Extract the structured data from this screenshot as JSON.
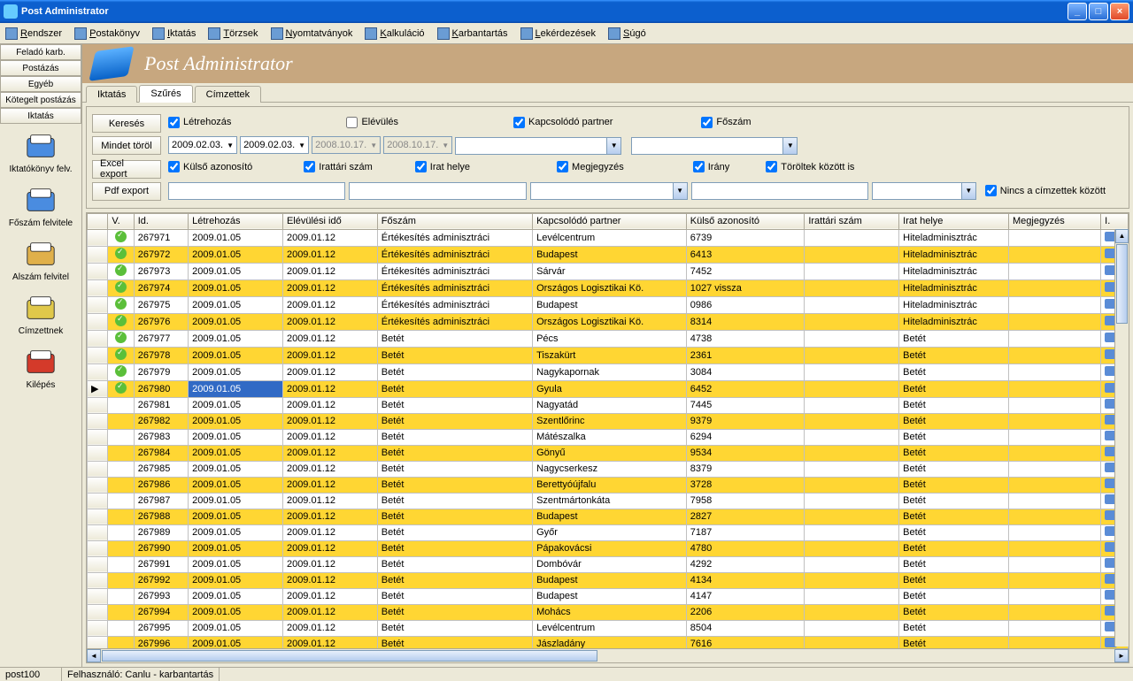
{
  "window": {
    "title": "Post Administrator"
  },
  "menu": [
    "Rendszer",
    "Postakönyv",
    "Iktatás",
    "Törzsek",
    "Nyomtatványok",
    "Kalkuláció",
    "Karbantartás",
    "Lekérdezések",
    "Súgó"
  ],
  "left_buttons": [
    "Feladó karb.",
    "Postázás",
    "Egyéb",
    "Kötegelt postázás",
    "Iktatás"
  ],
  "left_big": [
    {
      "label": "Iktatókönyv felv.",
      "color": "#4a8ce0"
    },
    {
      "label": "Főszám felvitele",
      "color": "#4a8ce0"
    },
    {
      "label": "Alszám felvitel",
      "color": "#e0b04a"
    },
    {
      "label": "Címzettnek",
      "color": "#e0c84a"
    },
    {
      "label": "Kilépés",
      "color": "#d43a2a"
    }
  ],
  "banner": "Post Administrator",
  "tabs": [
    "Iktatás",
    "Szűrés",
    "Címzettek"
  ],
  "active_tab": 1,
  "filter_buttons": [
    "Keresés",
    "Mindet töröl",
    "Excel export",
    "Pdf export"
  ],
  "filter_checks_r1": [
    "Létrehozás",
    "Elévülés",
    "Kapcsolódó partner",
    "Főszám"
  ],
  "filter_checks_r3": [
    "Külső azonosító",
    "Irattári szám",
    "Irat helye",
    "Megjegyzés",
    "Irány"
  ],
  "filter_checks_side": [
    "Töröltek között is",
    "Nincs a címzettek között"
  ],
  "date1": "2009.02.03.",
  "date2": "2009.02.03.",
  "date3": "2008.10.17.",
  "date4": "2008.10.17.",
  "grid_cols": [
    "",
    "V.",
    "Id.",
    "Létrehozás",
    "Elévülési idő",
    "Főszám",
    "Kapcsolódó partner",
    "Külső azonosító",
    "Irattári szám",
    "Irat helye",
    "Megjegyzés",
    "I."
  ],
  "grid_widths": [
    14,
    18,
    46,
    80,
    80,
    124,
    118,
    100,
    80,
    82,
    78,
    20
  ],
  "rows": [
    {
      "v": 1,
      "id": "267971",
      "c": "2009.01.05",
      "e": "2009.01.12",
      "f": "Értékesítés adminisztráci",
      "p": "Levélcentrum",
      "k": "6739",
      "it": "",
      "ih": "Hiteladminisztrác",
      "m": "",
      "hl": 0
    },
    {
      "v": 1,
      "id": "267972",
      "c": "2009.01.05",
      "e": "2009.01.12",
      "f": "Értékesítés adminisztráci",
      "p": "Budapest",
      "k": "6413",
      "it": "",
      "ih": "Hiteladminisztrác",
      "m": "",
      "hl": 1
    },
    {
      "v": 1,
      "id": "267973",
      "c": "2009.01.05",
      "e": "2009.01.12",
      "f": "Értékesítés adminisztráci",
      "p": "Sárvár",
      "k": "7452",
      "it": "",
      "ih": "Hiteladminisztrác",
      "m": "",
      "hl": 0
    },
    {
      "v": 1,
      "id": "267974",
      "c": "2009.01.05",
      "e": "2009.01.12",
      "f": "Értékesítés adminisztráci",
      "p": "Országos Logisztikai Kö.",
      "k": "1027 vissza",
      "it": "",
      "ih": "Hiteladminisztrác",
      "m": "",
      "hl": 1
    },
    {
      "v": 1,
      "id": "267975",
      "c": "2009.01.05",
      "e": "2009.01.12",
      "f": "Értékesítés adminisztráci",
      "p": "Budapest",
      "k": "0986",
      "it": "",
      "ih": "Hiteladminisztrác",
      "m": "",
      "hl": 0
    },
    {
      "v": 1,
      "id": "267976",
      "c": "2009.01.05",
      "e": "2009.01.12",
      "f": "Értékesítés adminisztráci",
      "p": "Országos Logisztikai Kö.",
      "k": "8314",
      "it": "",
      "ih": "Hiteladminisztrác",
      "m": "",
      "hl": 1
    },
    {
      "v": 1,
      "id": "267977",
      "c": "2009.01.05",
      "e": "2009.01.12",
      "f": "Betét",
      "p": "Pécs",
      "k": "4738",
      "it": "",
      "ih": "Betét",
      "m": "",
      "hl": 0
    },
    {
      "v": 1,
      "id": "267978",
      "c": "2009.01.05",
      "e": "2009.01.12",
      "f": "Betét",
      "p": "Tiszakürt",
      "k": "2361",
      "it": "",
      "ih": "Betét",
      "m": "",
      "hl": 1
    },
    {
      "v": 1,
      "id": "267979",
      "c": "2009.01.05",
      "e": "2009.01.12",
      "f": "Betét",
      "p": "Nagykapornak",
      "k": "3084",
      "it": "",
      "ih": "Betét",
      "m": "",
      "hl": 0
    },
    {
      "v": 1,
      "id": "267980",
      "c": "2009.01.05",
      "e": "2009.01.12",
      "f": "Betét",
      "p": "Gyula",
      "k": "6452",
      "it": "",
      "ih": "Betét",
      "m": "",
      "hl": 1,
      "sel": 1
    },
    {
      "v": 0,
      "id": "267981",
      "c": "2009.01.05",
      "e": "2009.01.12",
      "f": "Betét",
      "p": "Nagyatád",
      "k": "7445",
      "it": "",
      "ih": "Betét",
      "m": "",
      "hl": 0
    },
    {
      "v": 0,
      "id": "267982",
      "c": "2009.01.05",
      "e": "2009.01.12",
      "f": "Betét",
      "p": "Szentlőrinc",
      "k": "9379",
      "it": "",
      "ih": "Betét",
      "m": "",
      "hl": 1
    },
    {
      "v": 0,
      "id": "267983",
      "c": "2009.01.05",
      "e": "2009.01.12",
      "f": "Betét",
      "p": "Mátészalka",
      "k": "6294",
      "it": "",
      "ih": "Betét",
      "m": "",
      "hl": 0
    },
    {
      "v": 0,
      "id": "267984",
      "c": "2009.01.05",
      "e": "2009.01.12",
      "f": "Betét",
      "p": "Gönyű",
      "k": "9534",
      "it": "",
      "ih": "Betét",
      "m": "",
      "hl": 1
    },
    {
      "v": 0,
      "id": "267985",
      "c": "2009.01.05",
      "e": "2009.01.12",
      "f": "Betét",
      "p": "Nagycserkesz",
      "k": "8379",
      "it": "",
      "ih": "Betét",
      "m": "",
      "hl": 0
    },
    {
      "v": 0,
      "id": "267986",
      "c": "2009.01.05",
      "e": "2009.01.12",
      "f": "Betét",
      "p": "Berettyóújfalu",
      "k": "3728",
      "it": "",
      "ih": "Betét",
      "m": "",
      "hl": 1
    },
    {
      "v": 0,
      "id": "267987",
      "c": "2009.01.05",
      "e": "2009.01.12",
      "f": "Betét",
      "p": "Szentmártonkáta",
      "k": "7958",
      "it": "",
      "ih": "Betét",
      "m": "",
      "hl": 0
    },
    {
      "v": 0,
      "id": "267988",
      "c": "2009.01.05",
      "e": "2009.01.12",
      "f": "Betét",
      "p": "Budapest",
      "k": "2827",
      "it": "",
      "ih": "Betét",
      "m": "",
      "hl": 1
    },
    {
      "v": 0,
      "id": "267989",
      "c": "2009.01.05",
      "e": "2009.01.12",
      "f": "Betét",
      "p": "Győr",
      "k": "7187",
      "it": "",
      "ih": "Betét",
      "m": "",
      "hl": 0
    },
    {
      "v": 0,
      "id": "267990",
      "c": "2009.01.05",
      "e": "2009.01.12",
      "f": "Betét",
      "p": "Pápakovácsi",
      "k": "4780",
      "it": "",
      "ih": "Betét",
      "m": "",
      "hl": 1
    },
    {
      "v": 0,
      "id": "267991",
      "c": "2009.01.05",
      "e": "2009.01.12",
      "f": "Betét",
      "p": "Dombóvár",
      "k": "4292",
      "it": "",
      "ih": "Betét",
      "m": "",
      "hl": 0
    },
    {
      "v": 0,
      "id": "267992",
      "c": "2009.01.05",
      "e": "2009.01.12",
      "f": "Betét",
      "p": "Budapest",
      "k": "4134",
      "it": "",
      "ih": "Betét",
      "m": "",
      "hl": 1
    },
    {
      "v": 0,
      "id": "267993",
      "c": "2009.01.05",
      "e": "2009.01.12",
      "f": "Betét",
      "p": "Budapest",
      "k": "4147",
      "it": "",
      "ih": "Betét",
      "m": "",
      "hl": 0
    },
    {
      "v": 0,
      "id": "267994",
      "c": "2009.01.05",
      "e": "2009.01.12",
      "f": "Betét",
      "p": "Mohács",
      "k": "2206",
      "it": "",
      "ih": "Betét",
      "m": "",
      "hl": 1
    },
    {
      "v": 0,
      "id": "267995",
      "c": "2009.01.05",
      "e": "2009.01.12",
      "f": "Betét",
      "p": "Levélcentrum",
      "k": "8504",
      "it": "",
      "ih": "Betét",
      "m": "",
      "hl": 0
    },
    {
      "v": 0,
      "id": "267996",
      "c": "2009.01.05",
      "e": "2009.01.12",
      "f": "Betét",
      "p": "Jászladány",
      "k": "7616",
      "it": "",
      "ih": "Betét",
      "m": "",
      "hl": 1
    }
  ],
  "status": [
    "post100",
    "Felhasználó: Canlu - karbantartás"
  ]
}
